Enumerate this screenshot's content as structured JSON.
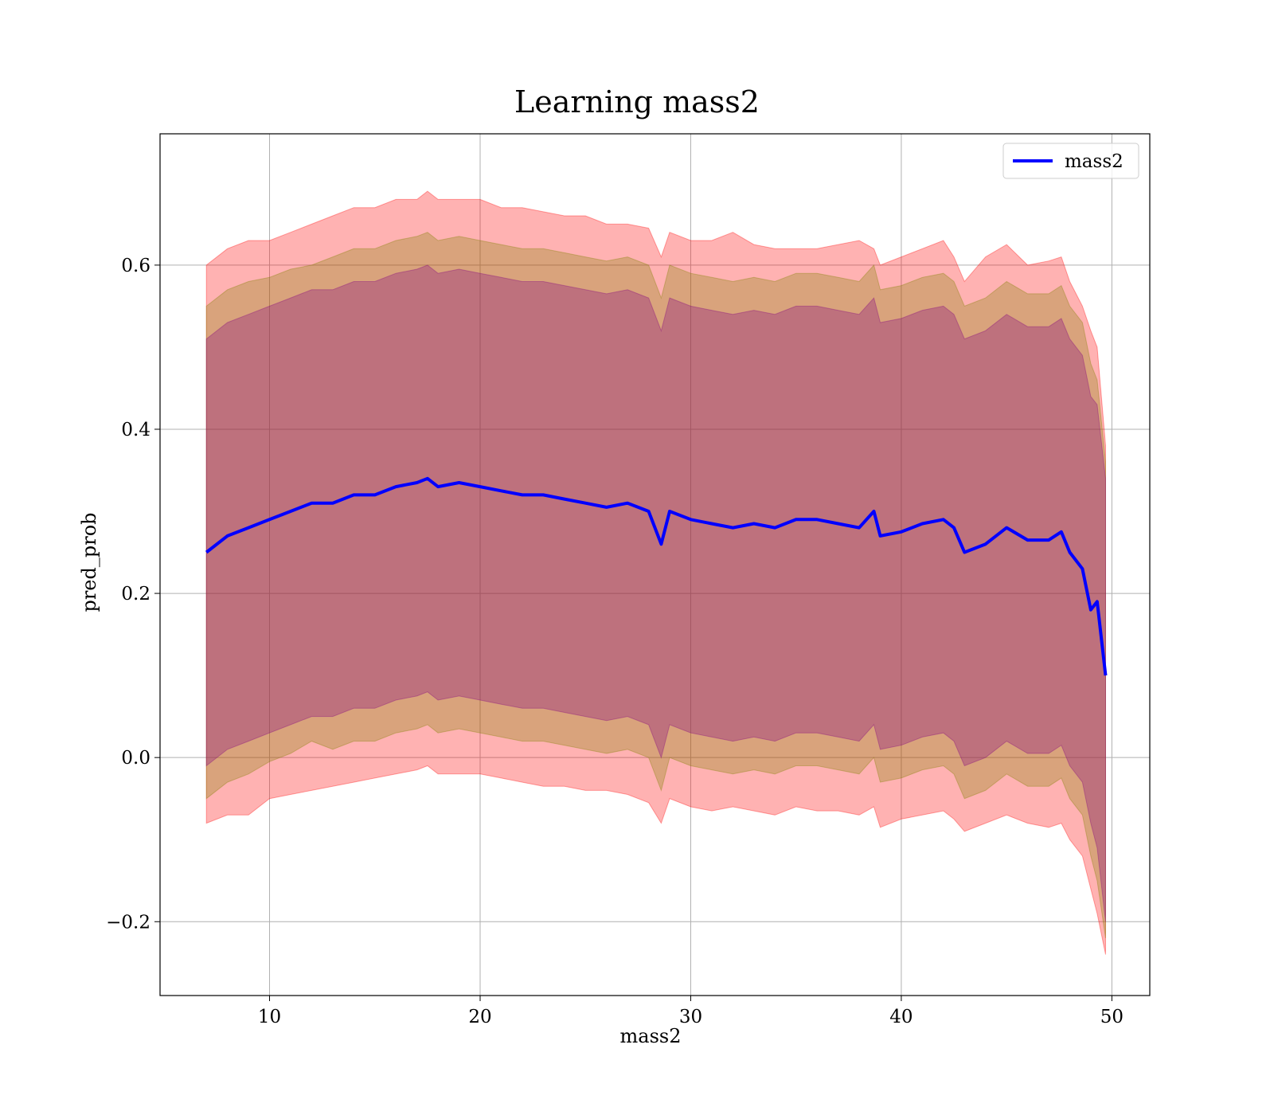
{
  "chart_data": {
    "type": "line",
    "title": "Learning mass2",
    "xlabel": "mass2",
    "ylabel": "pred_prob",
    "xlim": [
      4.8,
      51.8
    ],
    "ylim": [
      -0.29,
      0.76
    ],
    "xticks": [
      10,
      20,
      30,
      40,
      50
    ],
    "yticks": [
      -0.2,
      0.0,
      0.2,
      0.4,
      0.6
    ],
    "ytick_labels": [
      "−0.2",
      "0.0",
      "0.2",
      "0.4",
      "0.6"
    ],
    "grid": true,
    "legend_position": "top-right",
    "series": [
      {
        "name": "mass2",
        "color": "#0000ff",
        "x": [
          7.0,
          8.0,
          9.0,
          10.0,
          11.0,
          12.0,
          13.0,
          14.0,
          15.0,
          16.0,
          17.0,
          17.5,
          18.0,
          19.0,
          20.0,
          21.0,
          22.0,
          23.0,
          24.0,
          25.0,
          26.0,
          27.0,
          28.0,
          28.6,
          29.0,
          30.0,
          31.0,
          32.0,
          33.0,
          34.0,
          35.0,
          36.0,
          37.0,
          38.0,
          38.7,
          39.0,
          40.0,
          41.0,
          42.0,
          42.5,
          43.0,
          44.0,
          45.0,
          46.0,
          47.0,
          47.6,
          48.0,
          48.6,
          49.0,
          49.3,
          49.7
        ],
        "y": [
          0.25,
          0.27,
          0.28,
          0.29,
          0.3,
          0.31,
          0.31,
          0.32,
          0.32,
          0.33,
          0.335,
          0.34,
          0.33,
          0.335,
          0.33,
          0.325,
          0.32,
          0.32,
          0.315,
          0.31,
          0.305,
          0.31,
          0.3,
          0.26,
          0.3,
          0.29,
          0.285,
          0.28,
          0.285,
          0.28,
          0.29,
          0.29,
          0.285,
          0.28,
          0.3,
          0.27,
          0.275,
          0.285,
          0.29,
          0.28,
          0.25,
          0.26,
          0.28,
          0.265,
          0.265,
          0.275,
          0.25,
          0.23,
          0.18,
          0.19,
          0.1
        ]
      }
    ],
    "bands": [
      {
        "color": "#ff0000",
        "opacity": 0.3,
        "x": [
          7.0,
          8.0,
          9.0,
          10.0,
          11.0,
          12.0,
          13.0,
          14.0,
          15.0,
          16.0,
          17.0,
          17.5,
          18.0,
          19.0,
          20.0,
          21.0,
          22.0,
          23.0,
          24.0,
          25.0,
          26.0,
          27.0,
          28.0,
          28.6,
          29.0,
          30.0,
          31.0,
          32.0,
          33.0,
          34.0,
          35.0,
          36.0,
          37.0,
          38.0,
          38.7,
          39.0,
          40.0,
          41.0,
          42.0,
          42.5,
          43.0,
          44.0,
          45.0,
          46.0,
          47.0,
          47.6,
          48.0,
          48.6,
          49.0,
          49.3,
          49.7
        ],
        "upper": [
          0.6,
          0.62,
          0.63,
          0.63,
          0.64,
          0.65,
          0.66,
          0.67,
          0.67,
          0.68,
          0.68,
          0.69,
          0.68,
          0.68,
          0.68,
          0.67,
          0.67,
          0.665,
          0.66,
          0.66,
          0.65,
          0.65,
          0.645,
          0.61,
          0.64,
          0.63,
          0.63,
          0.64,
          0.625,
          0.62,
          0.62,
          0.62,
          0.625,
          0.63,
          0.62,
          0.6,
          0.61,
          0.62,
          0.63,
          0.61,
          0.58,
          0.61,
          0.625,
          0.6,
          0.605,
          0.61,
          0.58,
          0.55,
          0.52,
          0.5,
          0.38
        ],
        "lower": [
          -0.08,
          -0.07,
          -0.07,
          -0.05,
          -0.045,
          -0.04,
          -0.035,
          -0.03,
          -0.025,
          -0.02,
          -0.015,
          -0.01,
          -0.02,
          -0.02,
          -0.02,
          -0.025,
          -0.03,
          -0.035,
          -0.035,
          -0.04,
          -0.04,
          -0.045,
          -0.055,
          -0.08,
          -0.05,
          -0.06,
          -0.065,
          -0.06,
          -0.065,
          -0.07,
          -0.06,
          -0.065,
          -0.065,
          -0.07,
          -0.06,
          -0.085,
          -0.075,
          -0.07,
          -0.065,
          -0.075,
          -0.09,
          -0.08,
          -0.07,
          -0.08,
          -0.085,
          -0.08,
          -0.1,
          -0.12,
          -0.16,
          -0.19,
          -0.24
        ]
      },
      {
        "color": "#808000",
        "opacity": 0.3,
        "x": [
          7.0,
          8.0,
          9.0,
          10.0,
          11.0,
          12.0,
          13.0,
          14.0,
          15.0,
          16.0,
          17.0,
          17.5,
          18.0,
          19.0,
          20.0,
          21.0,
          22.0,
          23.0,
          24.0,
          25.0,
          26.0,
          27.0,
          28.0,
          28.6,
          29.0,
          30.0,
          31.0,
          32.0,
          33.0,
          34.0,
          35.0,
          36.0,
          37.0,
          38.0,
          38.7,
          39.0,
          40.0,
          41.0,
          42.0,
          42.5,
          43.0,
          44.0,
          45.0,
          46.0,
          47.0,
          47.6,
          48.0,
          48.6,
          49.0,
          49.3,
          49.7
        ],
        "upper": [
          0.55,
          0.57,
          0.58,
          0.585,
          0.595,
          0.6,
          0.61,
          0.62,
          0.62,
          0.63,
          0.635,
          0.64,
          0.63,
          0.635,
          0.63,
          0.625,
          0.62,
          0.62,
          0.615,
          0.61,
          0.605,
          0.61,
          0.6,
          0.56,
          0.6,
          0.59,
          0.585,
          0.58,
          0.585,
          0.58,
          0.59,
          0.59,
          0.585,
          0.58,
          0.6,
          0.57,
          0.575,
          0.585,
          0.59,
          0.58,
          0.55,
          0.56,
          0.58,
          0.565,
          0.565,
          0.575,
          0.55,
          0.53,
          0.48,
          0.46,
          0.36
        ],
        "lower": [
          -0.05,
          -0.03,
          -0.02,
          -0.005,
          0.005,
          0.02,
          0.01,
          0.02,
          0.02,
          0.03,
          0.035,
          0.04,
          0.03,
          0.035,
          0.03,
          0.025,
          0.02,
          0.02,
          0.015,
          0.01,
          0.005,
          0.01,
          0.0,
          -0.04,
          0.0,
          -0.01,
          -0.015,
          -0.02,
          -0.015,
          -0.02,
          -0.01,
          -0.01,
          -0.015,
          -0.02,
          0.0,
          -0.03,
          -0.025,
          -0.015,
          -0.01,
          -0.02,
          -0.05,
          -0.04,
          -0.02,
          -0.035,
          -0.035,
          -0.025,
          -0.05,
          -0.07,
          -0.12,
          -0.15,
          -0.22
        ]
      },
      {
        "color": "#800080",
        "opacity": 0.3,
        "x": [
          7.0,
          8.0,
          9.0,
          10.0,
          11.0,
          12.0,
          13.0,
          14.0,
          15.0,
          16.0,
          17.0,
          17.5,
          18.0,
          19.0,
          20.0,
          21.0,
          22.0,
          23.0,
          24.0,
          25.0,
          26.0,
          27.0,
          28.0,
          28.6,
          29.0,
          30.0,
          31.0,
          32.0,
          33.0,
          34.0,
          35.0,
          36.0,
          37.0,
          38.0,
          38.7,
          39.0,
          40.0,
          41.0,
          42.0,
          42.5,
          43.0,
          44.0,
          45.0,
          46.0,
          47.0,
          47.6,
          48.0,
          48.6,
          49.0,
          49.3,
          49.7
        ],
        "upper": [
          0.51,
          0.53,
          0.54,
          0.55,
          0.56,
          0.57,
          0.57,
          0.58,
          0.58,
          0.59,
          0.595,
          0.6,
          0.59,
          0.595,
          0.59,
          0.585,
          0.58,
          0.58,
          0.575,
          0.57,
          0.565,
          0.57,
          0.56,
          0.52,
          0.56,
          0.55,
          0.545,
          0.54,
          0.545,
          0.54,
          0.55,
          0.55,
          0.545,
          0.54,
          0.56,
          0.53,
          0.535,
          0.545,
          0.55,
          0.54,
          0.51,
          0.52,
          0.54,
          0.525,
          0.525,
          0.535,
          0.51,
          0.49,
          0.44,
          0.43,
          0.34
        ],
        "lower": [
          -0.01,
          0.01,
          0.02,
          0.03,
          0.04,
          0.05,
          0.05,
          0.06,
          0.06,
          0.07,
          0.075,
          0.08,
          0.07,
          0.075,
          0.07,
          0.065,
          0.06,
          0.06,
          0.055,
          0.05,
          0.045,
          0.05,
          0.04,
          0.0,
          0.04,
          0.03,
          0.025,
          0.02,
          0.025,
          0.02,
          0.03,
          0.03,
          0.025,
          0.02,
          0.04,
          0.01,
          0.015,
          0.025,
          0.03,
          0.02,
          -0.01,
          0.0,
          0.02,
          0.005,
          0.005,
          0.015,
          -0.01,
          -0.03,
          -0.08,
          -0.11,
          -0.2
        ]
      }
    ]
  }
}
